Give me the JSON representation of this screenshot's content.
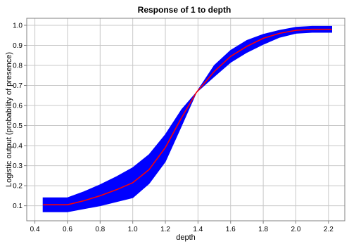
{
  "chart_data": {
    "type": "line",
    "title": "Response of 1 to depth",
    "xlabel": "depth",
    "ylabel": "Logistic output (probability of presence)",
    "xlim": [
      0.35,
      2.3
    ],
    "ylim": [
      0.025,
      1.035
    ],
    "grid": true,
    "legend": "none",
    "x_ticks": [
      0.4,
      0.6,
      0.8,
      1.0,
      1.2,
      1.4,
      1.6,
      1.8,
      2.0,
      2.2
    ],
    "x_tick_labels": [
      "0.4",
      "0.6",
      "0.8",
      "1.0",
      "1.2",
      "1.4",
      "1.6",
      "1.8",
      "2.0",
      "2.2"
    ],
    "y_ticks": [
      0.1,
      0.2,
      0.3,
      0.4,
      0.5,
      0.6,
      0.7,
      0.8,
      0.9,
      1.0
    ],
    "y_tick_labels": [
      "0.1",
      "0.2",
      "0.3",
      "0.4",
      "0.5",
      "0.6",
      "0.7",
      "0.8",
      "0.9",
      "1.0"
    ],
    "series": [
      {
        "role": "mean-response",
        "color": "#ff0000",
        "x": [
          0.45,
          0.6,
          0.7,
          0.8,
          0.9,
          1.0,
          1.1,
          1.2,
          1.3,
          1.39,
          1.5,
          1.6,
          1.7,
          1.8,
          1.9,
          2.0,
          2.1,
          2.22
        ],
        "y": [
          0.105,
          0.105,
          0.125,
          0.15,
          0.18,
          0.215,
          0.28,
          0.39,
          0.54,
          0.665,
          0.77,
          0.845,
          0.895,
          0.935,
          0.96,
          0.975,
          0.98,
          0.98
        ]
      },
      {
        "role": "confidence-band",
        "color": "#0000ff",
        "x": [
          0.45,
          0.6,
          0.7,
          0.8,
          0.9,
          1.0,
          1.1,
          1.2,
          1.3,
          1.39,
          1.5,
          1.6,
          1.7,
          1.8,
          1.9,
          2.0,
          2.1,
          2.22
        ],
        "upper": [
          0.14,
          0.14,
          0.17,
          0.205,
          0.245,
          0.29,
          0.355,
          0.455,
          0.58,
          0.665,
          0.8,
          0.875,
          0.925,
          0.955,
          0.975,
          0.99,
          0.995,
          0.995
        ],
        "lower": [
          0.07,
          0.07,
          0.085,
          0.1,
          0.12,
          0.14,
          0.21,
          0.32,
          0.5,
          0.665,
          0.745,
          0.815,
          0.865,
          0.905,
          0.94,
          0.96,
          0.965,
          0.965
        ]
      }
    ]
  }
}
